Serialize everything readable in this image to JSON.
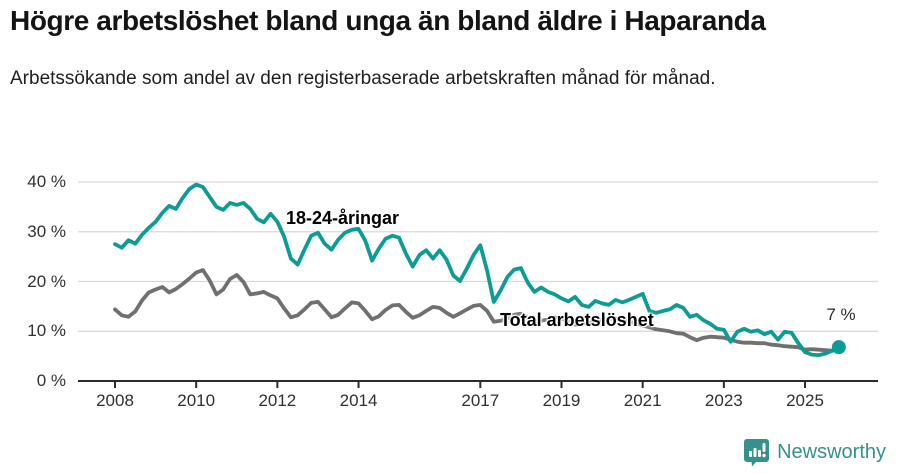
{
  "header": {
    "title": "Högre arbetslöshet bland unga än bland äldre i Haparanda",
    "subtitle": "Arbetssökande som andel av den registerbaserade arbetskraften månad för månad."
  },
  "series_labels": {
    "youth": "18-24-åringar",
    "total": "Total arbetslöshet"
  },
  "annotations": {
    "end_value_label": "7 %"
  },
  "footer": {
    "brand": "Newsworthy"
  },
  "colors": {
    "teal": "#0d9c94",
    "gray": "#707070",
    "grid": "#d8d8d8",
    "axis": "#2b2b2b",
    "brand": "#35918c"
  },
  "chart_data": {
    "type": "line",
    "title": "Högre arbetslöshet bland unga än bland äldre i Haparanda",
    "subtitle": "Arbetssökande som andel av den registerbaserade arbetskraften månad för månad.",
    "ylabel": "",
    "xlabel": "",
    "ylim": [
      0,
      42
    ],
    "yticks": [
      0,
      10,
      20,
      30,
      40
    ],
    "ytick_suffix": " %",
    "xticks": [
      2008,
      2010,
      2012,
      2014,
      2017,
      2019,
      2021,
      2023,
      2025
    ],
    "grid": "horizontal",
    "x_start": 2008.0,
    "x_step": 0.166667,
    "x_unit": "year (points every 2 months, Jan 2008 - Nov 2025)",
    "end_point_label": "7 %",
    "series": [
      {
        "name": "18-24-åringar",
        "color": "#0d9c94",
        "values": [
          27.5,
          26.8,
          28.3,
          27.6,
          29.4,
          30.8,
          32.0,
          33.8,
          35.2,
          34.6,
          36.8,
          38.6,
          39.5,
          39.0,
          37.0,
          35.0,
          34.4,
          35.8,
          35.4,
          35.8,
          34.6,
          32.6,
          31.9,
          33.6,
          32.0,
          29.0,
          24.6,
          23.4,
          26.4,
          29.2,
          29.8,
          27.6,
          26.4,
          28.4,
          29.8,
          30.4,
          30.6,
          28.2,
          24.2,
          26.6,
          28.6,
          29.2,
          28.8,
          25.6,
          23.0,
          25.3,
          26.3,
          24.6,
          26.3,
          24.4,
          21.2,
          20.1,
          22.6,
          25.3,
          27.3,
          22.2,
          15.9,
          18.2,
          20.9,
          22.4,
          22.7,
          19.8,
          17.9,
          18.8,
          17.9,
          17.4,
          16.6,
          16.0,
          16.9,
          15.3,
          14.9,
          16.1,
          15.6,
          15.3,
          16.3,
          15.8,
          16.3,
          16.9,
          17.5,
          14.1,
          13.7,
          14.1,
          14.4,
          15.3,
          14.7,
          12.9,
          13.3,
          12.2,
          11.5,
          10.5,
          10.3,
          7.9,
          9.9,
          10.5,
          9.9,
          10.2,
          9.4,
          9.9,
          8.3,
          9.9,
          9.7,
          7.6,
          5.8,
          5.3,
          5.2,
          5.5,
          6.1,
          6.8
        ]
      },
      {
        "name": "Total arbetslöshet",
        "color": "#707070",
        "values": [
          14.4,
          13.2,
          12.9,
          14.0,
          16.2,
          17.8,
          18.4,
          18.9,
          17.8,
          18.5,
          19.5,
          20.6,
          21.8,
          22.3,
          20.2,
          17.4,
          18.4,
          20.5,
          21.3,
          19.9,
          17.4,
          17.6,
          17.9,
          17.2,
          16.6,
          14.6,
          12.8,
          13.2,
          14.4,
          15.7,
          15.9,
          14.4,
          12.8,
          13.3,
          14.6,
          15.8,
          15.6,
          14.1,
          12.4,
          13.0,
          14.3,
          15.2,
          15.3,
          13.9,
          12.7,
          13.2,
          14.1,
          14.9,
          14.7,
          13.7,
          12.9,
          13.6,
          14.4,
          15.1,
          15.3,
          14.1,
          11.9,
          12.1,
          12.6,
          13.3,
          13.5,
          12.7,
          11.9,
          12.1,
          12.4,
          12.8,
          12.5,
          11.9,
          11.3,
          11.5,
          11.7,
          12.0,
          12.2,
          12.4,
          12.6,
          12.3,
          12.0,
          11.6,
          11.2,
          10.8,
          10.4,
          10.2,
          10.0,
          9.6,
          9.5,
          8.8,
          8.2,
          8.7,
          8.9,
          8.8,
          8.7,
          8.3,
          7.9,
          7.7,
          7.7,
          7.6,
          7.6,
          7.3,
          7.2,
          7.0,
          6.9,
          6.8,
          6.3,
          6.4,
          6.3,
          6.2,
          6.1,
          6.3
        ]
      }
    ],
    "legend_position": "inline-labels"
  }
}
